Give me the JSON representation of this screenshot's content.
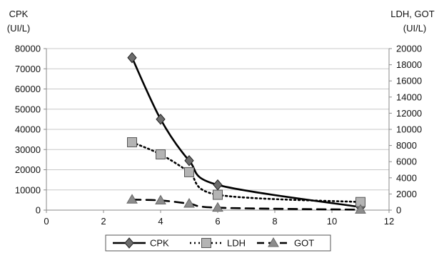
{
  "chart_data": {
    "type": "line",
    "left_axis_title": [
      "CPK",
      "(UI/L)"
    ],
    "right_axis_title": [
      "LDH, GOT",
      "(UI/L)"
    ],
    "xlim": [
      0,
      12
    ],
    "x_ticks": [
      0,
      2,
      4,
      6,
      8,
      10,
      12
    ],
    "ylim_left": [
      0,
      80000
    ],
    "y_ticks_left": [
      0,
      10000,
      20000,
      30000,
      40000,
      50000,
      60000,
      70000,
      80000
    ],
    "ylim_right": [
      0,
      20000
    ],
    "y_ticks_right": [
      0,
      2000,
      4000,
      6000,
      8000,
      10000,
      12000,
      14000,
      16000,
      18000,
      20000
    ],
    "grid": "horizontal",
    "legend_position": "bottom",
    "series": [
      {
        "name": "CPK",
        "axis": "left",
        "marker": "diamond",
        "line": "solid",
        "color": "#000000",
        "marker_fill": "#6d6d6d",
        "x": [
          3,
          4,
          5,
          6,
          11
        ],
        "y": [
          75500,
          45000,
          24500,
          12500,
          1500
        ]
      },
      {
        "name": "LDH",
        "axis": "right",
        "marker": "square",
        "line": "dotted",
        "color": "#000000",
        "marker_fill": "#b4b4b4",
        "x": [
          3,
          4,
          5,
          6,
          11
        ],
        "y": [
          8400,
          6900,
          4700,
          1900,
          1000
        ]
      },
      {
        "name": "GOT",
        "axis": "right",
        "marker": "triangle",
        "line": "dashed",
        "color": "#000000",
        "marker_fill": "#8c8c8c",
        "x": [
          3,
          4,
          5,
          6,
          11
        ],
        "y": [
          1300,
          1200,
          800,
          300,
          50
        ]
      }
    ]
  }
}
